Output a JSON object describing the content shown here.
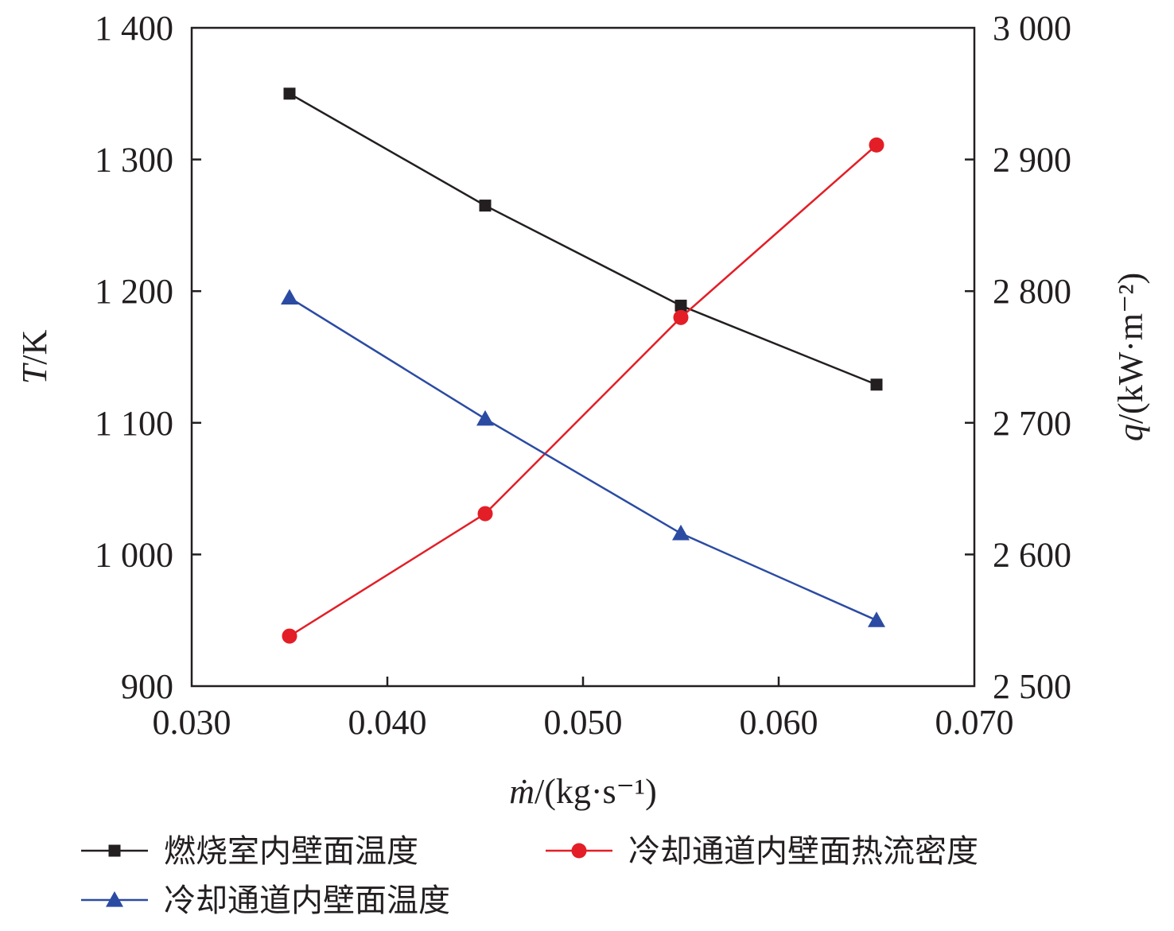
{
  "chart_data": {
    "type": "line",
    "x": [
      0.035,
      0.045,
      0.055,
      0.065
    ],
    "xlim": [
      0.03,
      0.07
    ],
    "x_ticks": [
      "0.030",
      "0.040",
      "0.050",
      "0.060",
      "0.070"
    ],
    "xlabel": "ṁ/(kg·s⁻¹)",
    "ylabel_left": "T/K",
    "ylim_left": [
      900,
      1400
    ],
    "y_ticks_left": [
      "900",
      "1 000",
      "1 100",
      "1 200",
      "1 300",
      "1 400"
    ],
    "ylabel_right": "q/(kW·m⁻²)",
    "ylim_right": [
      2500,
      3000
    ],
    "y_ticks_right": [
      "2 500",
      "2 600",
      "2 700",
      "2 800",
      "2 900",
      "3 000"
    ],
    "grid": false,
    "legend_position": "bottom",
    "series": [
      {
        "name": "燃烧室内壁面温度",
        "axis": "left",
        "marker": "square",
        "color": "#231f20",
        "values": [
          1350,
          1265,
          1189,
          1129
        ]
      },
      {
        "name": "冷却通道内壁面热流密度",
        "axis": "right",
        "marker": "circle",
        "color": "#e31e26",
        "values": [
          2538,
          2631,
          2780,
          2911
        ]
      },
      {
        "name": "冷却通道内壁面温度",
        "axis": "left",
        "marker": "triangle",
        "color": "#2b4ba3",
        "values": [
          1195,
          1103,
          1016,
          950
        ]
      }
    ]
  }
}
